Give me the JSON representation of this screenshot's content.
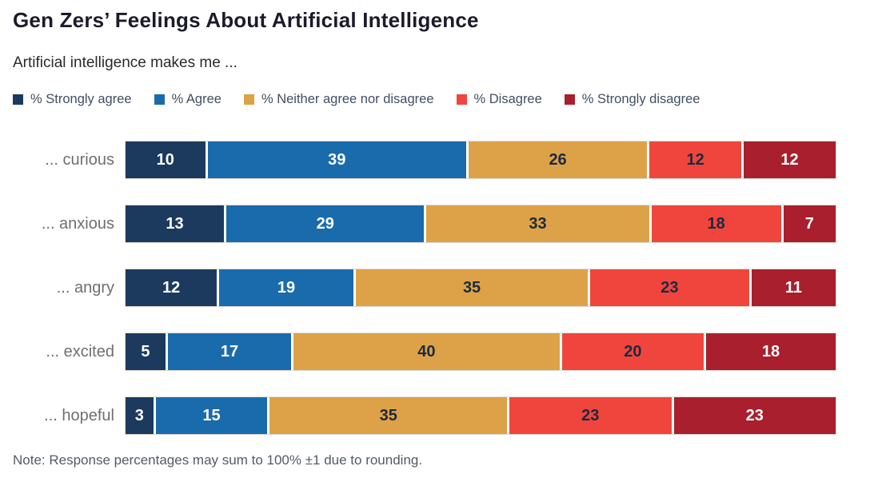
{
  "page": {
    "title": "Gen Zers’ Feelings About Artificial Intelligence",
    "subtitle": "Artificial intelligence makes me ...",
    "note": "Note: Response percentages may sum to 100% ±1 due to rounding."
  },
  "colors": {
    "strongly_agree": "#1C3A5E",
    "agree": "#1A6BAC",
    "neither": "#DDA247",
    "disagree": "#F0453D",
    "strongly_disagree": "#A91F2D",
    "title_text": "#1B1B2B",
    "row_label_text": "#6F6F6F",
    "dark_value_text": "#1B2A41",
    "light_value_text": "#FFFFFF"
  },
  "chart_data": {
    "type": "bar",
    "variant": "horizontal-stacked",
    "title": "Gen Zers’ Feelings About Artificial Intelligence",
    "subtitle": "Artificial intelligence makes me ...",
    "legend_position": "top",
    "value_labels": "inside",
    "grid": false,
    "xlim": [
      0,
      100
    ],
    "categories": [
      "... curious",
      "... anxious",
      "... angry",
      "... excited",
      "... hopeful"
    ],
    "series": [
      {
        "name": "% Strongly agree",
        "color": "#1C3A5E",
        "label_color": "#FFFFFF",
        "values": [
          10,
          13,
          12,
          5,
          3
        ]
      },
      {
        "name": "% Agree",
        "color": "#1A6BAC",
        "label_color": "#FFFFFF",
        "values": [
          39,
          29,
          19,
          17,
          15
        ]
      },
      {
        "name": "% Neither agree nor disagree",
        "color": "#DDA247",
        "label_color": "#1B2A41",
        "values": [
          26,
          33,
          35,
          40,
          35
        ]
      },
      {
        "name": "% Disagree",
        "color": "#F0453D",
        "label_color": "#1B2A41",
        "values": [
          12,
          18,
          23,
          20,
          23
        ]
      },
      {
        "name": "% Strongly disagree",
        "color": "#A91F2D",
        "label_color": "#FFFFFF",
        "values": [
          12,
          7,
          11,
          18,
          23
        ]
      }
    ],
    "note": "Note: Response percentages may sum to 100% ±1 due to rounding."
  }
}
